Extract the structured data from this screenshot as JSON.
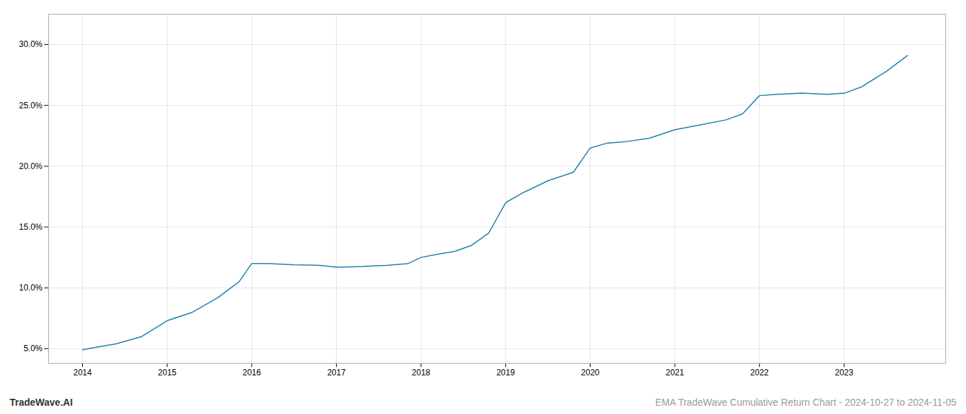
{
  "chart_data": {
    "type": "line",
    "x": [
      2014.0,
      2014.15,
      2014.4,
      2014.7,
      2015.0,
      2015.3,
      2015.6,
      2015.85,
      2016.0,
      2016.2,
      2016.5,
      2016.8,
      2017.0,
      2017.3,
      2017.6,
      2017.85,
      2018.0,
      2018.15,
      2018.4,
      2018.6,
      2018.8,
      2019.0,
      2019.2,
      2019.5,
      2019.8,
      2020.0,
      2020.2,
      2020.4,
      2020.7,
      2021.0,
      2021.3,
      2021.6,
      2021.8,
      2022.0,
      2022.2,
      2022.5,
      2022.8,
      2023.0,
      2023.2,
      2023.5,
      2023.75
    ],
    "values": [
      4.9,
      5.1,
      5.4,
      6.0,
      7.3,
      8.0,
      9.2,
      10.5,
      12.0,
      12.0,
      11.9,
      11.85,
      11.7,
      11.75,
      11.85,
      12.0,
      12.5,
      12.7,
      13.0,
      13.5,
      14.5,
      17.0,
      17.8,
      18.8,
      19.5,
      21.5,
      21.9,
      22.0,
      22.3,
      23.0,
      23.4,
      23.8,
      24.3,
      25.8,
      25.9,
      26.0,
      25.9,
      26.0,
      26.5,
      27.8,
      29.1
    ],
    "color": "#1a7fa8",
    "xlim": [
      2013.6,
      2024.2
    ],
    "xticks": [
      2014,
      2015,
      2016,
      2017,
      2018,
      2019,
      2020,
      2021,
      2022,
      2023
    ],
    "ylim": [
      3.8,
      32.5
    ],
    "yticks": [
      {
        "value": 5.0,
        "label": "5.0%"
      },
      {
        "value": 10.0,
        "label": "10.0%"
      },
      {
        "value": 15.0,
        "label": "15.0%"
      },
      {
        "value": 20.0,
        "label": "20.0%"
      },
      {
        "value": 25.0,
        "label": "25.0%"
      },
      {
        "value": 30.0,
        "label": "30.0%"
      }
    ],
    "grid": true,
    "annotations": [
      "TradeWave.AI",
      "EMA TradeWave Cumulative Return Chart - 2024-10-27 to 2024-11-05"
    ]
  }
}
